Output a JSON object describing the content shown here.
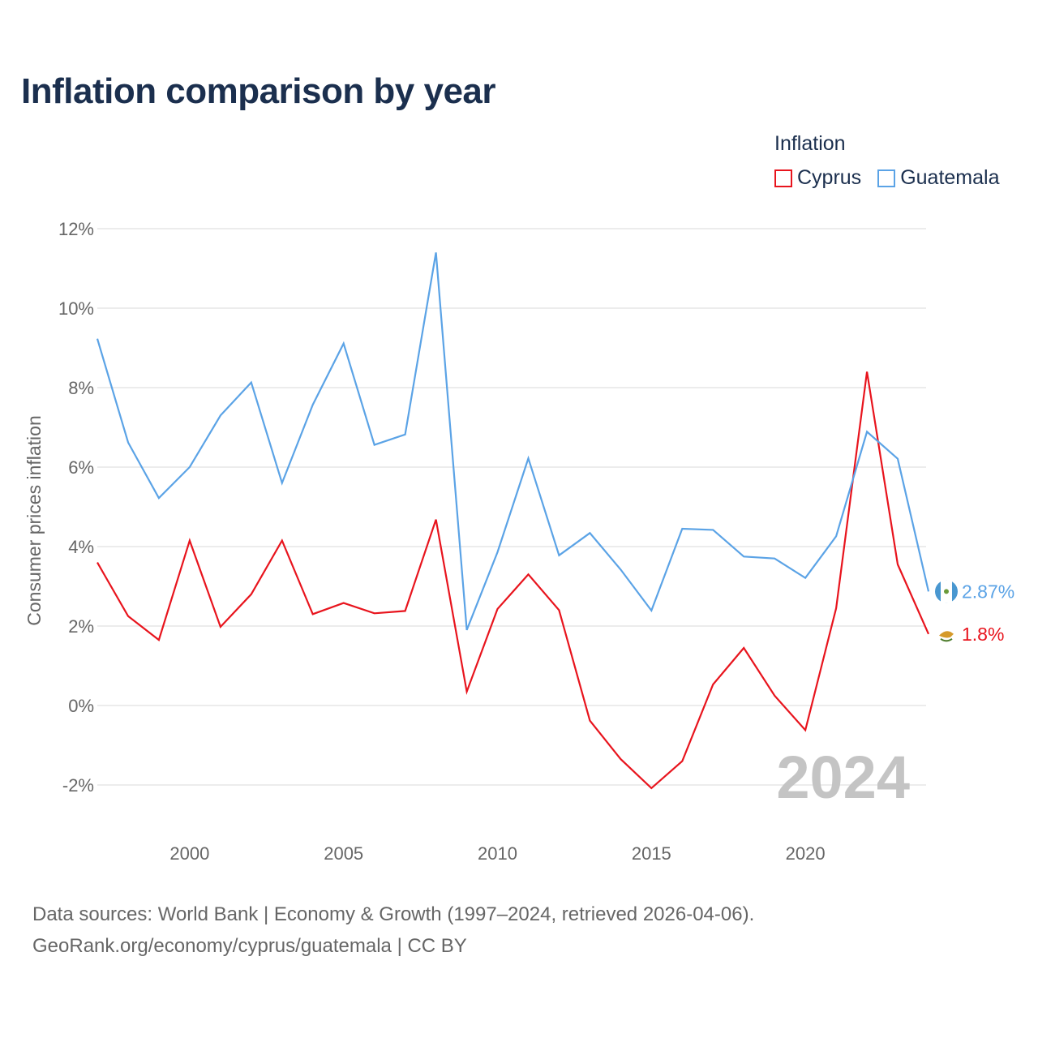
{
  "title": "Inflation comparison by year",
  "legend": {
    "title": "Inflation",
    "items": [
      {
        "name": "Cyprus",
        "color": "#e8141d"
      },
      {
        "name": "Guatemala",
        "color": "#5ba3e6"
      }
    ]
  },
  "footer": {
    "line1": "Data sources: World Bank | Economy & Growth (1997–2024, retrieved 2026-04-06).",
    "line2": "GeoRank.org/economy/cyprus/guatemala | CC BY"
  },
  "chart_data": {
    "type": "line",
    "title": "Inflation comparison by year",
    "xlabel": "",
    "ylabel": "Consumer prices inflation",
    "x": [
      1997,
      1998,
      1999,
      2000,
      2001,
      2002,
      2003,
      2004,
      2005,
      2006,
      2007,
      2008,
      2009,
      2010,
      2011,
      2012,
      2013,
      2014,
      2015,
      2016,
      2017,
      2018,
      2019,
      2020,
      2021,
      2022,
      2023,
      2024
    ],
    "xlim": [
      1997,
      2024
    ],
    "ylim": [
      -3,
      12
    ],
    "x_ticks": [
      2000,
      2005,
      2010,
      2015,
      2020
    ],
    "y_ticks": [
      -2,
      0,
      2,
      4,
      6,
      8,
      10,
      12
    ],
    "y_tick_labels": [
      "-2%",
      "0%",
      "2%",
      "4%",
      "6%",
      "8%",
      "10%",
      "12%"
    ],
    "year_label": "2024",
    "series": [
      {
        "name": "Cyprus",
        "color": "#e8141d",
        "end_label": "1.8%",
        "values": [
          3.6,
          2.25,
          1.65,
          4.15,
          1.98,
          2.8,
          4.15,
          2.3,
          2.58,
          2.32,
          2.38,
          4.68,
          0.35,
          2.43,
          3.3,
          2.4,
          -0.38,
          -1.35,
          -2.08,
          -1.4,
          0.53,
          1.45,
          0.25,
          -0.62,
          2.45,
          8.4,
          3.55,
          1.8
        ]
      },
      {
        "name": "Guatemala",
        "color": "#5ba3e6",
        "end_label": "2.87%",
        "values": [
          9.23,
          6.62,
          5.22,
          6.0,
          7.3,
          8.13,
          5.6,
          7.57,
          9.11,
          6.56,
          6.82,
          11.4,
          1.9,
          3.86,
          6.22,
          3.78,
          4.34,
          3.42,
          2.39,
          4.45,
          4.42,
          3.75,
          3.7,
          3.21,
          4.26,
          6.89,
          6.21,
          2.87
        ]
      }
    ]
  }
}
